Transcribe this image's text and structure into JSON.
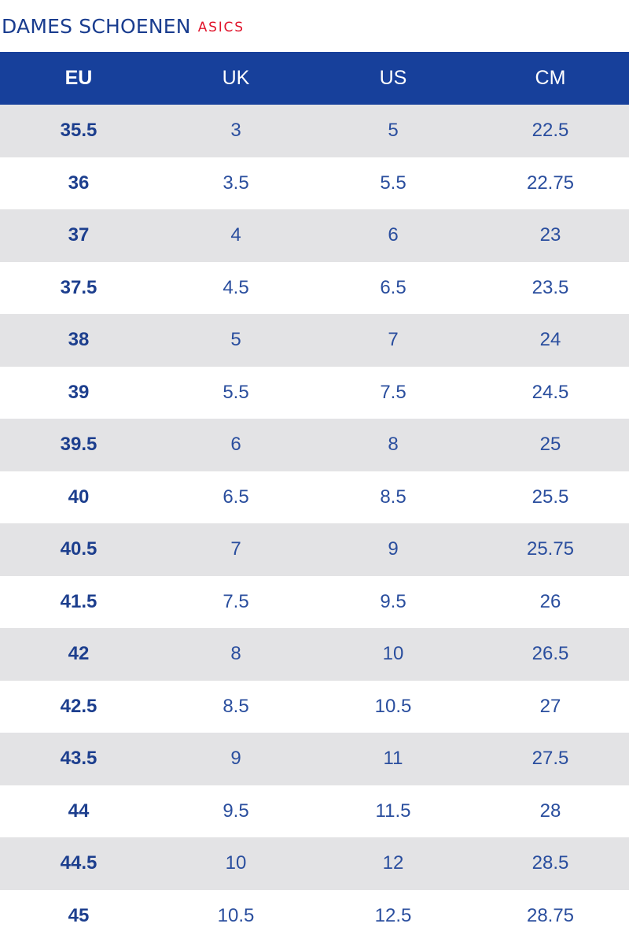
{
  "title": {
    "main": "DAMES SCHOENEN",
    "brand": "ASICS"
  },
  "colors": {
    "header_bg": "#17409b",
    "title_blue": "#1a3d8f",
    "brand_red": "#e0142b",
    "stripe_gray": "#e3e3e5"
  },
  "table": {
    "headers": [
      "EU",
      "UK",
      "US",
      "CM"
    ],
    "rows": [
      [
        "35.5",
        "3",
        "5",
        "22.5"
      ],
      [
        "36",
        "3.5",
        "5.5",
        "22.75"
      ],
      [
        "37",
        "4",
        "6",
        "23"
      ],
      [
        "37.5",
        "4.5",
        "6.5",
        "23.5"
      ],
      [
        "38",
        "5",
        "7",
        "24"
      ],
      [
        "39",
        "5.5",
        "7.5",
        "24.5"
      ],
      [
        "39.5",
        "6",
        "8",
        "25"
      ],
      [
        "40",
        "6.5",
        "8.5",
        "25.5"
      ],
      [
        "40.5",
        "7",
        "9",
        "25.75"
      ],
      [
        "41.5",
        "7.5",
        "9.5",
        "26"
      ],
      [
        "42",
        "8",
        "10",
        "26.5"
      ],
      [
        "42.5",
        "8.5",
        "10.5",
        "27"
      ],
      [
        "43.5",
        "9",
        "11",
        "27.5"
      ],
      [
        "44",
        "9.5",
        "11.5",
        "28"
      ],
      [
        "44.5",
        "10",
        "12",
        "28.5"
      ],
      [
        "45",
        "10.5",
        "12.5",
        "28.75"
      ]
    ]
  }
}
